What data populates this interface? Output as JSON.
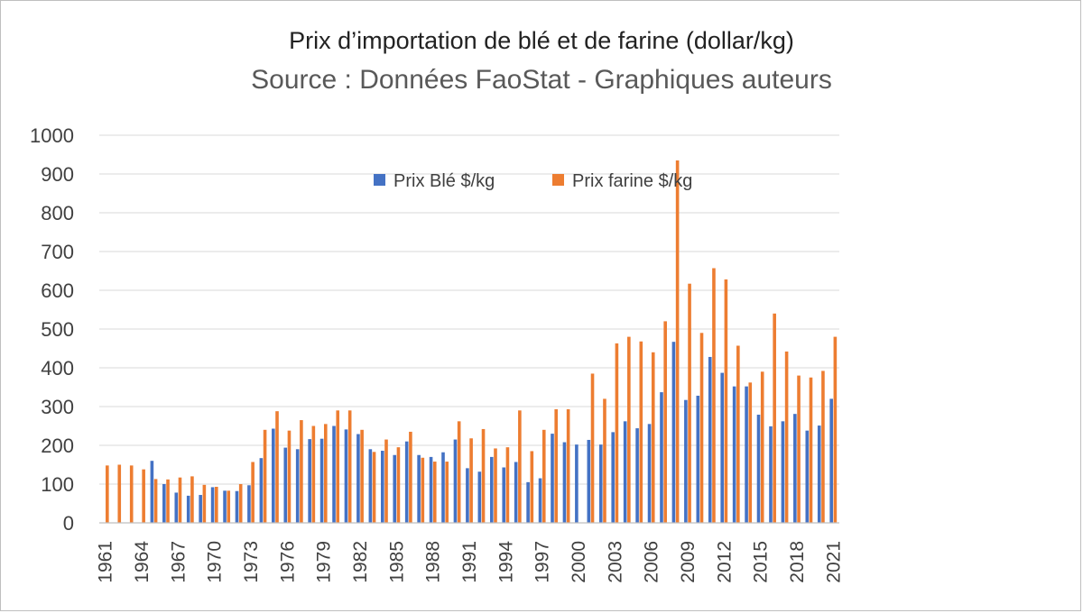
{
  "chart_data": {
    "type": "bar",
    "title": "Prix d’importation de blé et de farine (dollar/kg)",
    "subtitle": "Source : Données FaoStat - Graphiques auteurs",
    "xlabel": "",
    "ylabel": "",
    "ylim": [
      0,
      1000
    ],
    "yticks": [
      "0",
      "100",
      "200",
      "300",
      "400",
      "500",
      "600",
      "700",
      "800",
      "900",
      "1000"
    ],
    "grid": true,
    "legend_position": "top",
    "colors": {
      "ble": "#4472c4",
      "farine": "#ed7d31",
      "grid": "#d9d9d9",
      "axis": "#bfbfbf",
      "text": "#404040"
    },
    "categories": [
      "1961",
      "1962",
      "1963",
      "1964",
      "1965",
      "1966",
      "1967",
      "1968",
      "1969",
      "1970",
      "1971",
      "1972",
      "1973",
      "1974",
      "1975",
      "1976",
      "1977",
      "1978",
      "1979",
      "1980",
      "1981",
      "1982",
      "1983",
      "1984",
      "1985",
      "1986",
      "1987",
      "1988",
      "1989",
      "1990",
      "1991",
      "1992",
      "1993",
      "1994",
      "1995",
      "1996",
      "1997",
      "1998",
      "1999",
      "2000",
      "2001",
      "2002",
      "2003",
      "2004",
      "2005",
      "2006",
      "2007",
      "2008",
      "2009",
      "2010",
      "2011",
      "2012",
      "2013",
      "2014",
      "2015",
      "2016",
      "2017",
      "2018",
      "2019",
      "2020",
      "2021"
    ],
    "x_tick_labels": [
      "1961",
      "1964",
      "1967",
      "1970",
      "1973",
      "1976",
      "1979",
      "1982",
      "1985",
      "1988",
      "1991",
      "1994",
      "1997",
      "2000",
      "2003",
      "2006",
      "2009",
      "2012",
      "2015",
      "2018",
      "2021"
    ],
    "series": [
      {
        "name": "Prix Blé $/kg",
        "color": "#4472c4",
        "values": [
          0,
          0,
          0,
          0,
          160,
          100,
          78,
          70,
          72,
          92,
          83,
          82,
          97,
          167,
          243,
          194,
          190,
          216,
          217,
          250,
          241,
          229,
          190,
          186,
          175,
          210,
          175,
          170,
          182,
          215,
          141,
          132,
          170,
          143,
          157,
          105,
          115,
          230,
          208,
          202,
          214,
          202,
          234,
          262,
          244,
          255,
          337,
          467,
          317,
          328,
          428,
          387,
          352,
          352,
          279,
          249,
          262,
          281,
          238,
          251,
          320
        ]
      },
      {
        "name": "Prix farine $/kg",
        "color": "#ed7d31",
        "values": [
          148,
          150,
          148,
          138,
          113,
          112,
          117,
          120,
          98,
          93,
          83,
          100,
          157,
          240,
          288,
          238,
          265,
          250,
          255,
          290,
          290,
          240,
          183,
          215,
          195,
          235,
          168,
          158,
          158,
          262,
          218,
          242,
          192,
          195,
          290,
          185,
          240,
          293,
          293,
          0,
          385,
          320,
          463,
          480,
          468,
          440,
          520,
          935,
          617,
          490,
          657,
          628,
          457,
          362,
          390,
          540,
          442,
          380,
          375,
          392,
          480
        ]
      }
    ]
  }
}
